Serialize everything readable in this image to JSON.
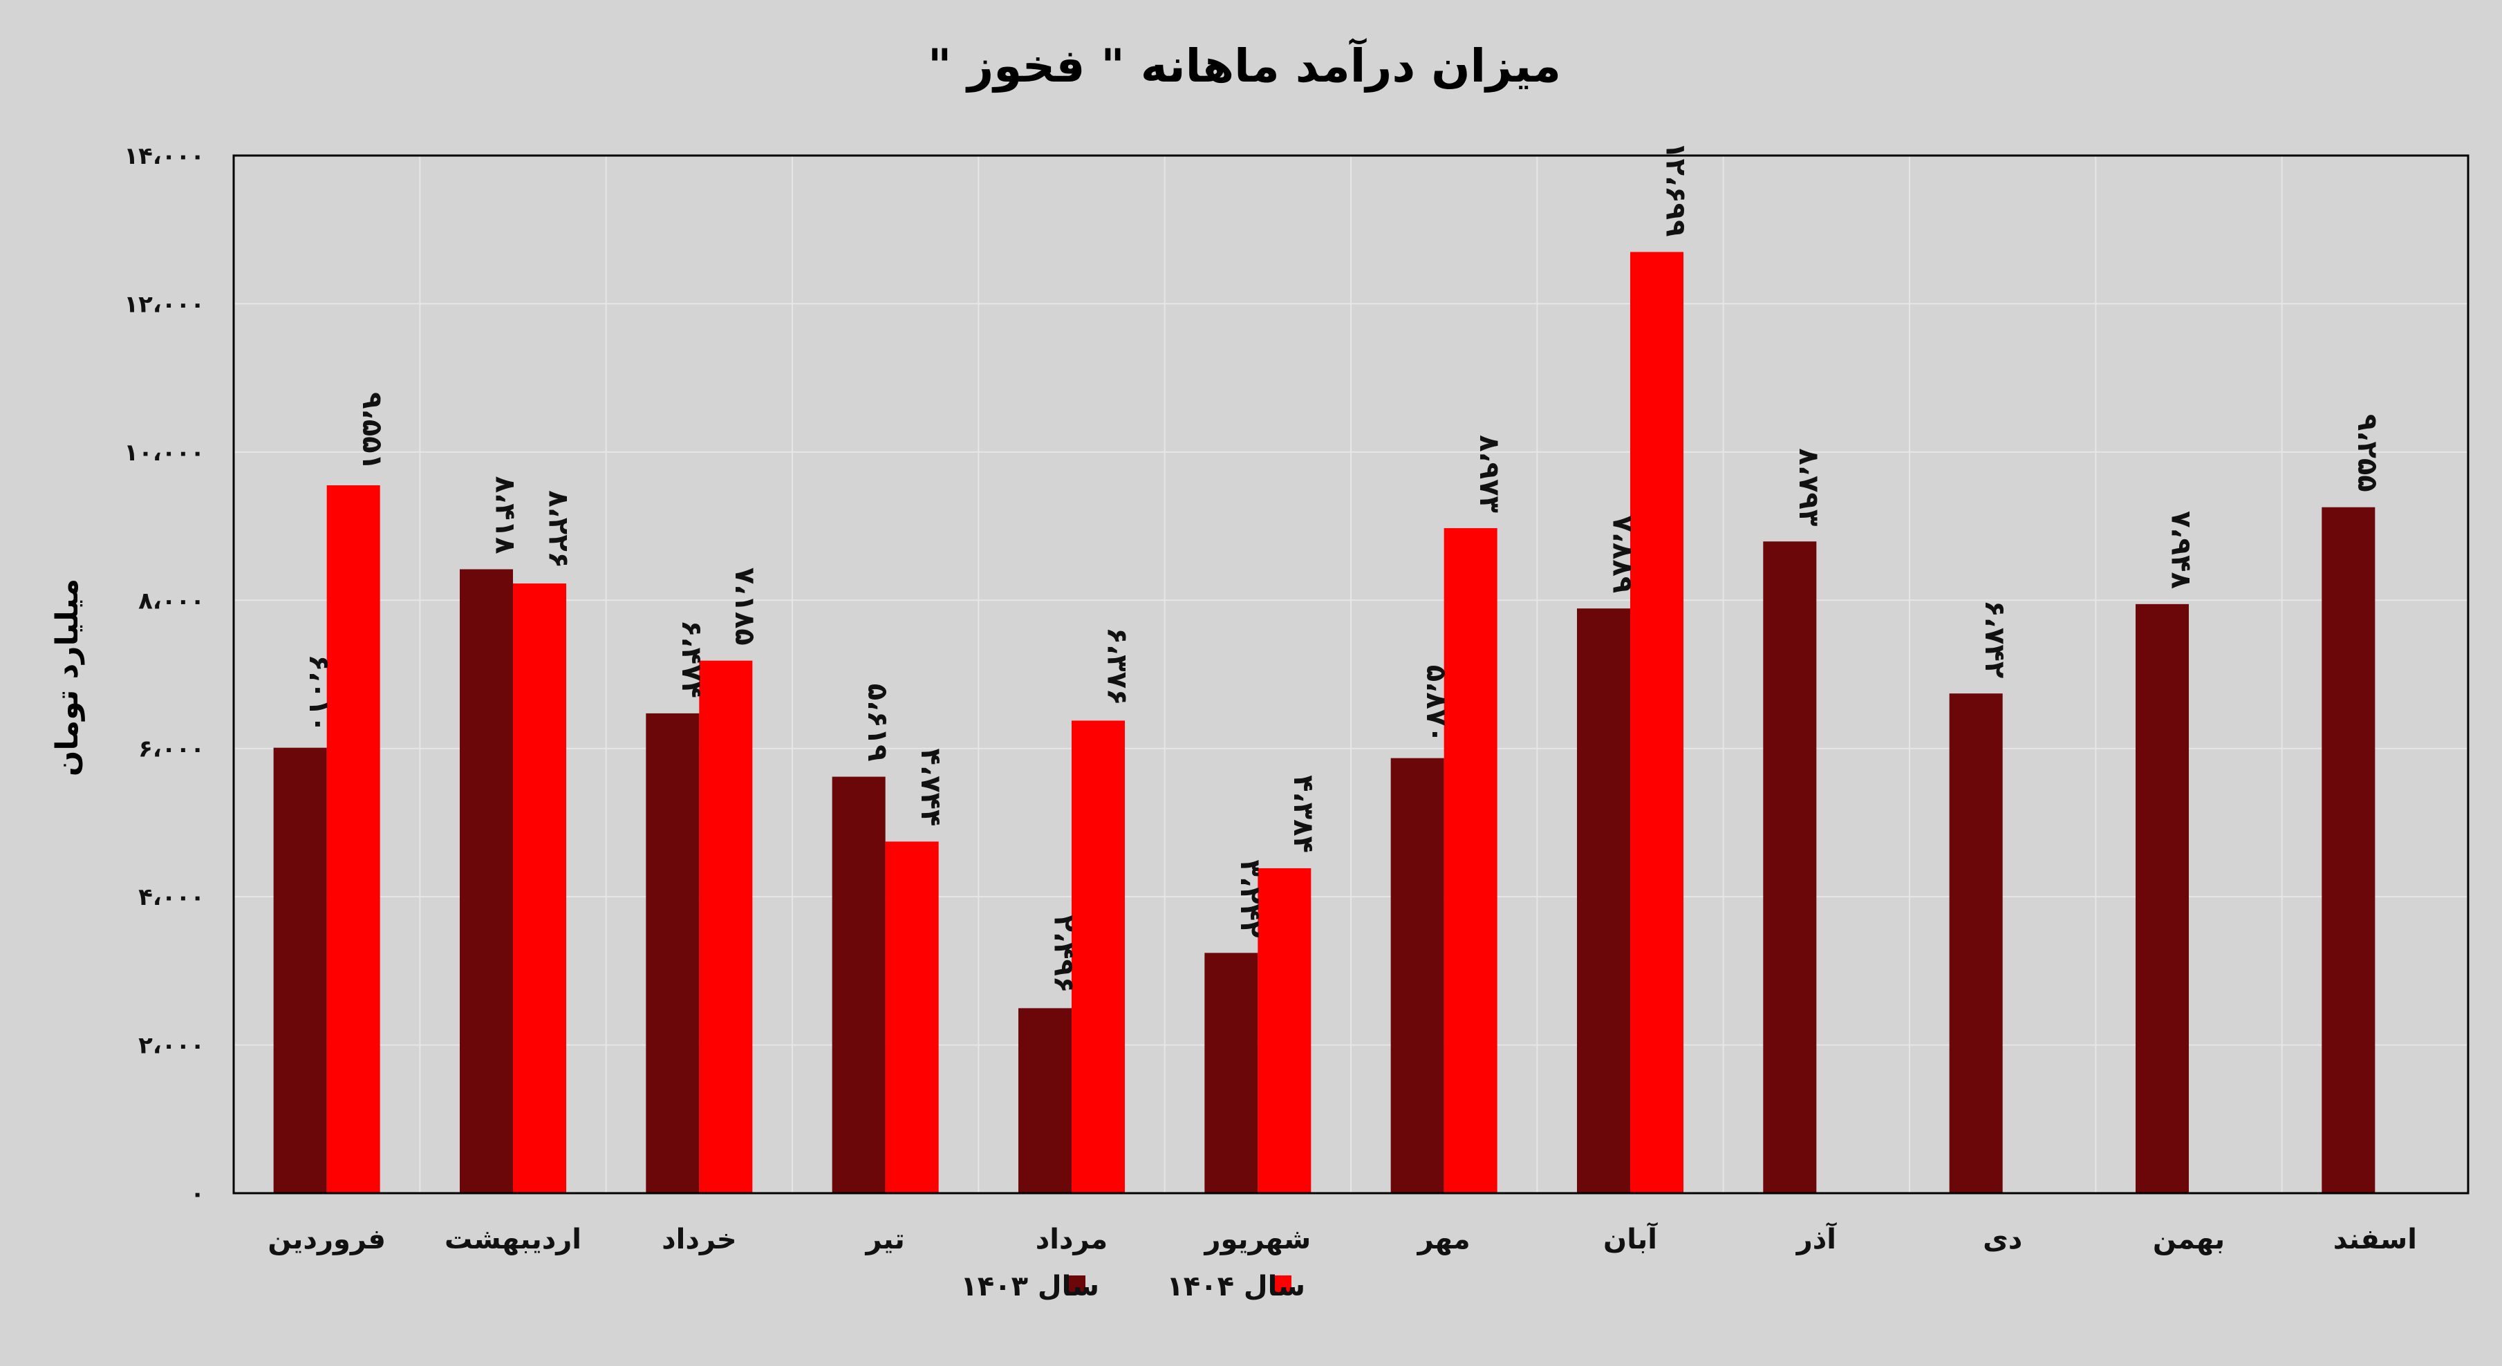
{
  "chart_data": {
    "type": "bar",
    "title": "میزان درآمد ماهانه \" فخوز \"",
    "ylabel": "میلیارد تومان",
    "xlabel": "",
    "ylim": [
      0,
      14000
    ],
    "yticks": [
      0,
      2000,
      4000,
      6000,
      8000,
      10000,
      12000,
      14000
    ],
    "ytick_labels": [
      "۰",
      "۲،۰۰۰",
      "۴،۰۰۰",
      "۶،۰۰۰",
      "۸،۰۰۰",
      "۱۰،۰۰۰",
      "۱۲،۰۰۰",
      "۱۴،۰۰۰"
    ],
    "grid": true,
    "legend_position": "bottom",
    "categories": [
      "فروردین",
      "اردیبهشت",
      "خرداد",
      "تیر",
      "مرداد",
      "شهریور",
      "مهر",
      "آبان",
      "آذر",
      "دی",
      "بهمن",
      "اسفند"
    ],
    "series": [
      {
        "name": "سال ۱۴۰۳",
        "color": "#6b0609",
        "values": [
          6010,
          8418,
          6474,
          5619,
          2496,
          3242,
          5870,
          7889,
          8793,
          6742,
          7948,
          9255
        ],
        "labels": [
          "۶،۰۱۰",
          "۸،۴۱۸",
          "۶،۴۷۴",
          "۵،۶۱۹",
          "۲،۴۹۶",
          "۳،۲۴۲",
          "۵،۸۷۰",
          "۷،۸۸۹",
          "۸،۷۹۳",
          "۶،۷۴۲",
          "۷،۹۴۸",
          "۹،۲۵۵"
        ]
      },
      {
        "name": "سال ۱۴۰۴",
        "color": "#ff0000",
        "values": [
          9551,
          8226,
          7185,
          4744,
          6376,
          4384,
          8973,
          12699,
          null,
          null,
          null,
          null
        ],
        "labels": [
          "۹،۵۵۱",
          "۸،۲۲۶",
          "۷،۱۸۵",
          "۴،۷۴۴",
          "۶،۳۷۶",
          "۴،۳۸۴",
          "۸،۹۷۳",
          "۱۲،۶۹۹",
          null,
          null,
          null,
          null
        ]
      }
    ]
  }
}
